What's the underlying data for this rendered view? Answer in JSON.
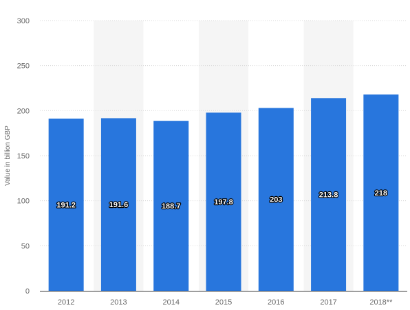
{
  "chart_data": {
    "type": "bar",
    "title": "",
    "xlabel": "",
    "ylabel": "Value in billion GBP",
    "ylim": [
      0,
      300
    ],
    "yticks": [
      0,
      50,
      100,
      150,
      200,
      250,
      300
    ],
    "grid": true,
    "legend": "none",
    "categories": [
      "2012",
      "2013",
      "2014",
      "2015",
      "2016",
      "2017",
      "2018**"
    ],
    "values": [
      191.2,
      191.6,
      188.7,
      197.8,
      203,
      213.8,
      218
    ],
    "data_labels": [
      "191.2",
      "191.6",
      "188.7",
      "197.8",
      "203",
      "213.8",
      "218"
    ],
    "colors": {
      "bar": "#2876dd",
      "grid": "#d8d8d8",
      "axis": "#333333",
      "band": "#f5f5f5"
    }
  }
}
